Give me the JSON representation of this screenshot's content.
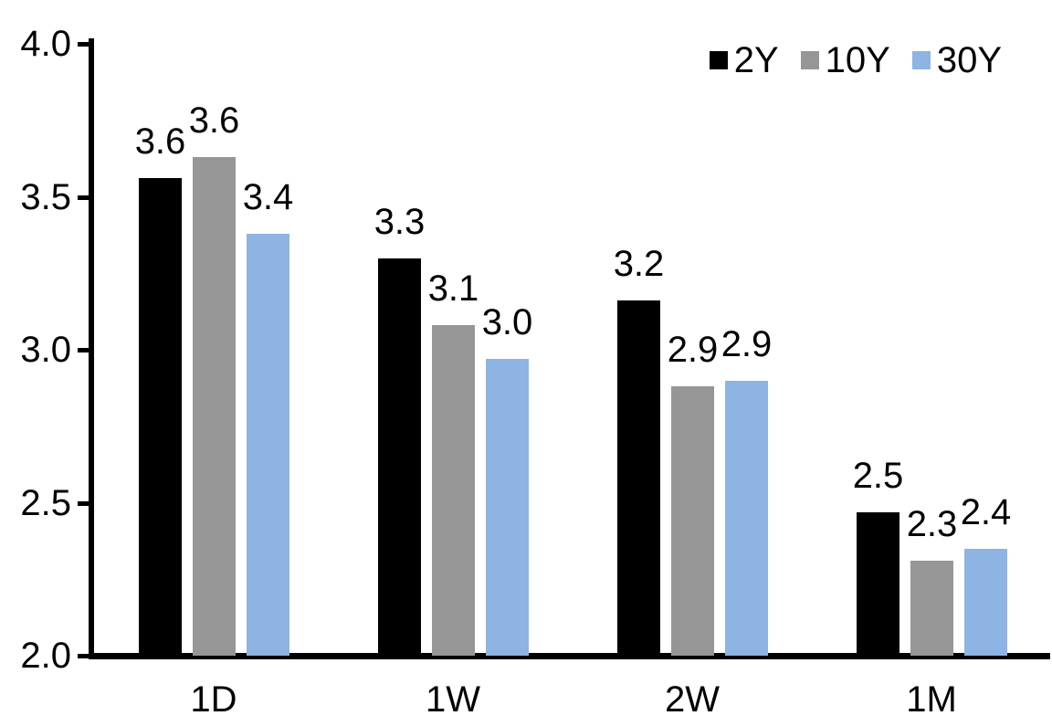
{
  "chart_data": {
    "type": "bar",
    "title": "",
    "xlabel": "",
    "ylabel": "",
    "categories": [
      "1D",
      "1W",
      "2W",
      "1M"
    ],
    "series": [
      {
        "name": "2Y",
        "color": "#000000",
        "values": [
          3.56,
          3.3,
          3.16,
          2.47
        ],
        "labels": [
          "3.6",
          "3.3",
          "3.2",
          "2.5"
        ]
      },
      {
        "name": "10Y",
        "color": "#969696",
        "values": [
          3.63,
          3.08,
          2.88,
          2.31
        ],
        "labels": [
          "3.6",
          "3.1",
          "2.9",
          "2.3"
        ]
      },
      {
        "name": "30Y",
        "color": "#8DB4E2",
        "values": [
          3.38,
          2.97,
          2.9,
          2.35
        ],
        "labels": [
          "3.4",
          "3.0",
          "2.9",
          "2.4"
        ]
      }
    ],
    "y_axis": {
      "min": 2.0,
      "max": 4.0,
      "tick_step": 0.5,
      "tick_labels": [
        "2.0",
        "2.5",
        "3.0",
        "3.5",
        "4.0"
      ]
    },
    "legend_position": "top-right",
    "grid": false,
    "axis_color": "#000000",
    "text_color": "#000000",
    "background_color": "#ffffff"
  }
}
